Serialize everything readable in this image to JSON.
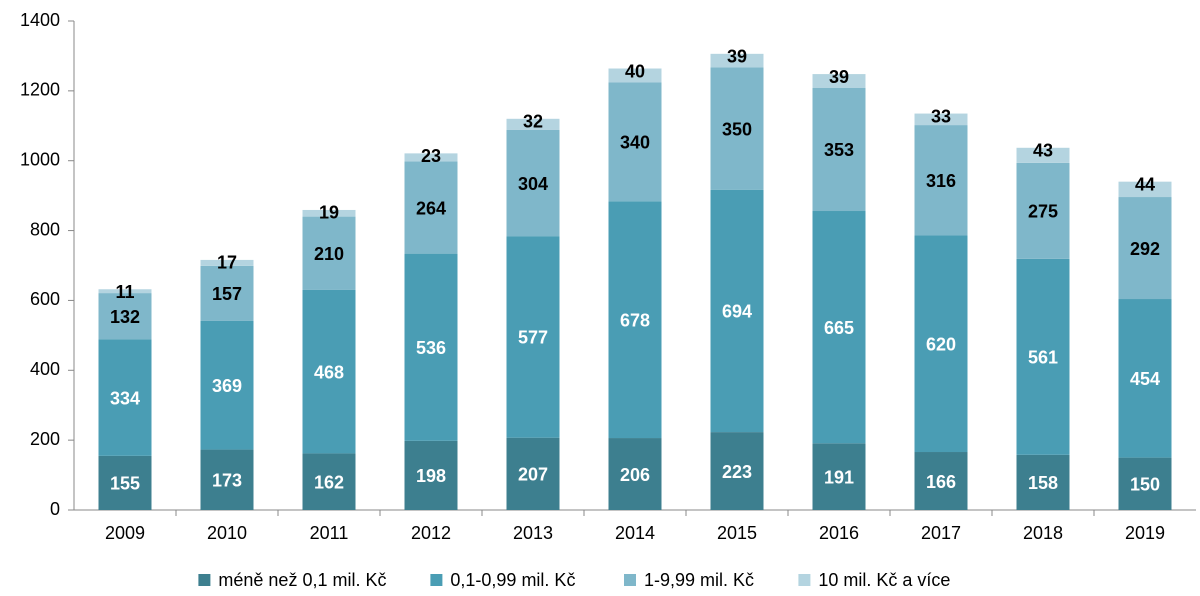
{
  "chart_data": {
    "type": "stacked_bar",
    "categories": [
      "2009",
      "2010",
      "2011",
      "2012",
      "2013",
      "2014",
      "2015",
      "2016",
      "2017",
      "2018",
      "2019"
    ],
    "series": [
      {
        "name": "méně než 0,1 mil. Kč",
        "color": "#3d7f8f",
        "label_color": "#ffffff",
        "values": [
          155,
          173,
          162,
          198,
          207,
          206,
          223,
          191,
          166,
          158,
          150
        ]
      },
      {
        "name": "0,1-0,99 mil. Kč",
        "color": "#4a9db4",
        "label_color": "#ffffff",
        "values": [
          334,
          369,
          468,
          536,
          577,
          678,
          694,
          665,
          620,
          561,
          454
        ]
      },
      {
        "name": "1-9,99 mil. Kč",
        "color": "#7fb7ca",
        "label_color": "#000000",
        "values": [
          132,
          157,
          210,
          264,
          304,
          340,
          350,
          353,
          316,
          275,
          292
        ]
      },
      {
        "name": "10 mil. Kč a více",
        "color": "#b4d4e0",
        "label_color": "#000000",
        "values": [
          11,
          17,
          19,
          23,
          32,
          40,
          39,
          39,
          33,
          43,
          44
        ]
      }
    ],
    "ylim": [
      0,
      1400
    ],
    "yticks": [
      0,
      200,
      400,
      600,
      800,
      1000,
      1200,
      1400
    ],
    "legend": "bottom"
  }
}
